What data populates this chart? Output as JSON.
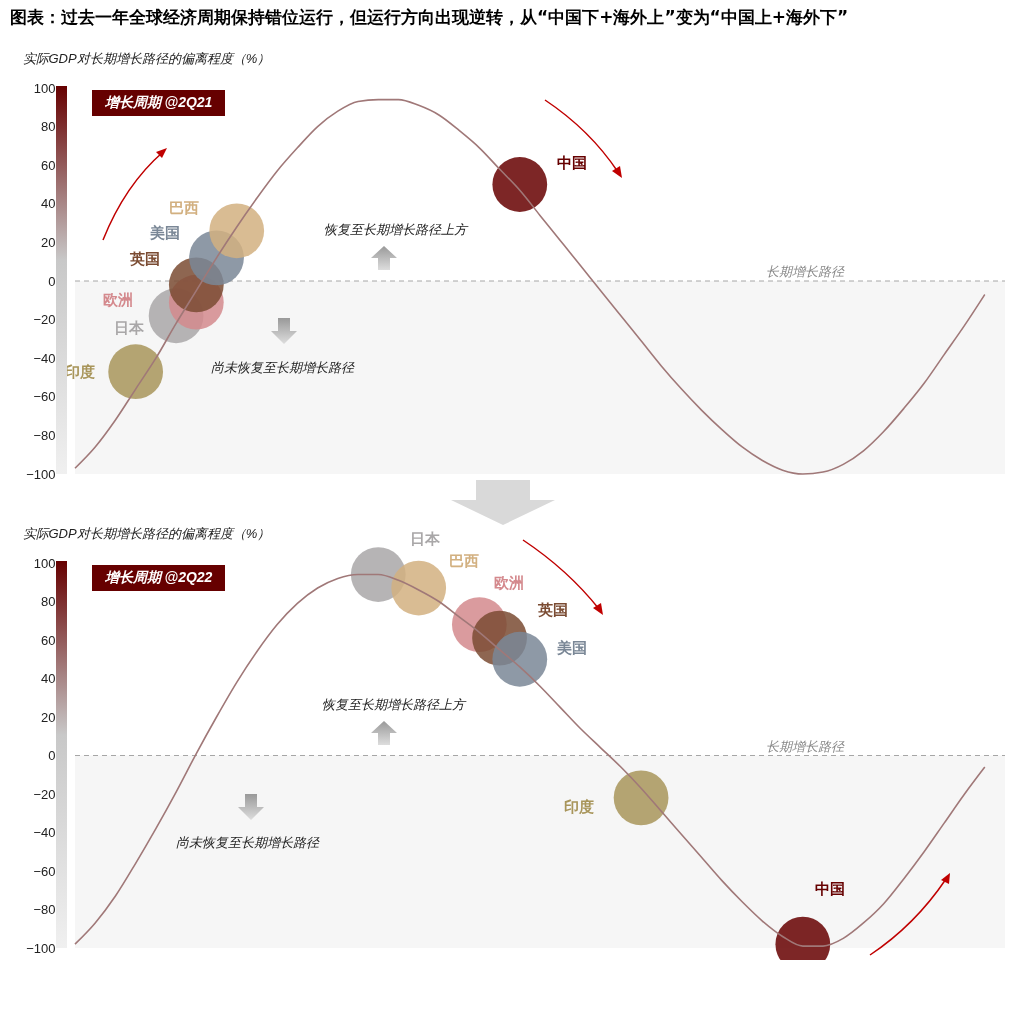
{
  "chart_data": [
    {
      "type": "scatter",
      "title": "图表：过去一年全球经济周期保持错位运行，但运行方向出现逆转，从“中国下+海外上”变为“中国上+海外下”",
      "subtitle": "增长周期 @2Q21",
      "ylabel": "实际GDP对长期增长路径的偏离程度（%）",
      "marker": "circle",
      "categories": [
        null,
        null,
        null,
        null,
        null,
        null,
        null,
        null,
        null,
        null,
        null,
        null,
        null,
        null,
        null,
        null,
        null,
        null,
        null,
        null,
        null,
        null,
        null,
        null,
        null,
        null,
        null,
        null,
        null,
        null,
        null,
        null,
        null,
        null,
        null,
        null,
        null,
        null,
        null,
        null,
        null,
        null,
        null,
        null,
        null,
        null,
        null
      ],
      "ylim": [
        -100,
        100
      ],
      "yticks": [
        -100,
        -80,
        -60,
        -40,
        -20,
        0,
        20,
        40,
        60,
        80,
        100
      ],
      "ref_lines": [
        {
          "axis": "y",
          "value": 0,
          "label": "长期增长路径",
          "color": "#a6a6a6",
          "line_style": "dashed"
        }
      ],
      "bands": [
        {
          "axis": "y",
          "from": -100,
          "to": 0,
          "color": "#f6f6f6"
        }
      ],
      "annotations": [
        "恢复至长期增长路径上方",
        "尚未恢复至长期增长路径"
      ],
      "series": [
        {
          "type": "line",
          "marker": "none",
          "color": "#a07878",
          "values": [
            -97,
            -86,
            -72,
            -56,
            -40,
            -22,
            -5,
            12,
            28,
            43,
            57,
            69,
            80,
            88,
            93,
            94,
            94,
            91,
            86,
            78,
            69,
            58,
            47,
            34,
            21,
            8,
            -5,
            -18,
            -31,
            -44,
            -56,
            -67,
            -77,
            -86,
            -93,
            -98,
            -100,
            -99,
            -95,
            -88,
            -78,
            -66,
            -53,
            -38,
            -23,
            -7,
            null
          ]
        },
        {
          "name": "印度",
          "color": "#a8955a",
          "values": [
            null,
            null,
            null,
            -47,
            null,
            null,
            null,
            null,
            null,
            null,
            null,
            null,
            null,
            null,
            null,
            null,
            null,
            null,
            null,
            null,
            null,
            null,
            null,
            null,
            null,
            null,
            null,
            null,
            null,
            null,
            null,
            null,
            null,
            null,
            null,
            null,
            null,
            null,
            null,
            null,
            null,
            null,
            null,
            null,
            null,
            null,
            null
          ]
        },
        {
          "name": "日本",
          "color": "#a9a7a8",
          "values": [
            null,
            null,
            null,
            null,
            null,
            -18,
            null,
            null,
            null,
            null,
            null,
            null,
            null,
            null,
            null,
            null,
            null,
            null,
            null,
            null,
            null,
            null,
            null,
            null,
            null,
            null,
            null,
            null,
            null,
            null,
            null,
            null,
            null,
            null,
            null,
            null,
            null,
            null,
            null,
            null,
            null,
            null,
            null,
            null,
            null,
            null,
            null
          ]
        },
        {
          "name": "欧洲",
          "color": "#d4898d",
          "values": [
            null,
            null,
            null,
            null,
            null,
            null,
            -11,
            null,
            null,
            null,
            null,
            null,
            null,
            null,
            null,
            null,
            null,
            null,
            null,
            null,
            null,
            null,
            null,
            null,
            null,
            null,
            null,
            null,
            null,
            null,
            null,
            null,
            null,
            null,
            null,
            null,
            null,
            null,
            null,
            null,
            null,
            null,
            null,
            null,
            null,
            null,
            null
          ]
        },
        {
          "name": "英国",
          "color": "#7a4b32",
          "values": [
            null,
            null,
            null,
            null,
            null,
            null,
            -2,
            null,
            null,
            null,
            null,
            null,
            null,
            null,
            null,
            null,
            null,
            null,
            null,
            null,
            null,
            null,
            null,
            null,
            null,
            null,
            null,
            null,
            null,
            null,
            null,
            null,
            null,
            null,
            null,
            null,
            null,
            null,
            null,
            null,
            null,
            null,
            null,
            null,
            null,
            null,
            null
          ]
        },
        {
          "name": "美国",
          "color": "#7a8796",
          "values": [
            null,
            null,
            null,
            null,
            null,
            null,
            null,
            12,
            null,
            null,
            null,
            null,
            null,
            null,
            null,
            null,
            null,
            null,
            null,
            null,
            null,
            null,
            null,
            null,
            null,
            null,
            null,
            null,
            null,
            null,
            null,
            null,
            null,
            null,
            null,
            null,
            null,
            null,
            null,
            null,
            null,
            null,
            null,
            null,
            null,
            null,
            null
          ]
        },
        {
          "name": "巴西",
          "color": "#d2b080",
          "values": [
            null,
            null,
            null,
            null,
            null,
            null,
            null,
            null,
            26,
            null,
            null,
            null,
            null,
            null,
            null,
            null,
            null,
            null,
            null,
            null,
            null,
            null,
            null,
            null,
            null,
            null,
            null,
            null,
            null,
            null,
            null,
            null,
            null,
            null,
            null,
            null,
            null,
            null,
            null,
            null,
            null,
            null,
            null,
            null,
            null,
            null,
            null
          ]
        },
        {
          "name": "中国",
          "color": "#660000",
          "values": [
            null,
            null,
            null,
            null,
            null,
            null,
            null,
            null,
            null,
            null,
            null,
            null,
            null,
            null,
            null,
            null,
            null,
            null,
            null,
            null,
            null,
            null,
            50,
            null,
            null,
            null,
            null,
            null,
            null,
            null,
            null,
            null,
            null,
            null,
            null,
            null,
            null,
            null,
            null,
            null,
            null,
            null,
            null,
            null,
            null,
            null,
            null
          ]
        }
      ]
    },
    {
      "type": "scatter",
      "subtitle": "增长周期 @2Q22",
      "ylabel": "实际GDP对长期增长路径的偏离程度（%）",
      "marker": "circle",
      "categories": [
        null,
        null,
        null,
        null,
        null,
        null,
        null,
        null,
        null,
        null,
        null,
        null,
        null,
        null,
        null,
        null,
        null,
        null,
        null,
        null,
        null,
        null,
        null,
        null,
        null,
        null,
        null,
        null,
        null,
        null,
        null,
        null,
        null,
        null,
        null,
        null,
        null,
        null,
        null,
        null,
        null,
        null,
        null,
        null,
        null,
        null,
        null
      ],
      "ylim": [
        -100,
        100
      ],
      "yticks": [
        -100,
        -80,
        -60,
        -40,
        -20,
        0,
        20,
        40,
        60,
        80,
        100
      ],
      "ref_lines": [
        {
          "axis": "y",
          "value": 0,
          "label": "长期增长路径",
          "color": "#a6a6a6",
          "line_style": "dashed"
        }
      ],
      "bands": [
        {
          "axis": "y",
          "from": -100,
          "to": 0,
          "color": "#f6f6f6"
        }
      ],
      "annotations": [
        "恢复至长期增长路径上方",
        "尚未恢复至长期增长路径"
      ],
      "series": [
        {
          "type": "line",
          "marker": "none",
          "color": "#a07878",
          "values": [
            -98,
            -87,
            -73,
            -56,
            -38,
            -19,
            1,
            20,
            38,
            54,
            68,
            79,
            87,
            92,
            94,
            94,
            91,
            86,
            80,
            72,
            64,
            55,
            46,
            36,
            25,
            14,
            4,
            -6,
            -17,
            -29,
            -41,
            -53,
            -65,
            -76,
            -86,
            -94,
            -99,
            -99,
            -95,
            -87,
            -77,
            -64,
            -50,
            -35,
            -20,
            -6,
            null
          ]
        },
        {
          "name": "印度",
          "color": "#a8955a",
          "values": [
            null,
            null,
            null,
            null,
            null,
            null,
            null,
            null,
            null,
            null,
            null,
            null,
            null,
            null,
            null,
            null,
            null,
            null,
            null,
            null,
            null,
            null,
            null,
            null,
            null,
            null,
            null,
            null,
            -22,
            null,
            null,
            null,
            null,
            null,
            null,
            null,
            null,
            null,
            null,
            null,
            null,
            null,
            null,
            null,
            null,
            null,
            null
          ]
        },
        {
          "name": "日本",
          "color": "#a9a7a8",
          "values": [
            null,
            null,
            null,
            null,
            null,
            null,
            null,
            null,
            null,
            null,
            null,
            null,
            null,
            null,
            null,
            94,
            null,
            null,
            null,
            null,
            null,
            null,
            null,
            null,
            null,
            null,
            null,
            null,
            null,
            null,
            null,
            null,
            null,
            null,
            null,
            null,
            null,
            null,
            null,
            null,
            null,
            null,
            null,
            null,
            null,
            null,
            null
          ]
        },
        {
          "name": "欧洲",
          "color": "#d4898d",
          "values": [
            null,
            null,
            null,
            null,
            null,
            null,
            null,
            null,
            null,
            null,
            null,
            null,
            null,
            null,
            null,
            null,
            null,
            null,
            null,
            null,
            68,
            null,
            null,
            null,
            null,
            null,
            null,
            null,
            null,
            null,
            null,
            null,
            null,
            null,
            null,
            null,
            null,
            null,
            null,
            null,
            null,
            null,
            null,
            null,
            null,
            null,
            null
          ]
        },
        {
          "name": "英国",
          "color": "#7a4b32",
          "values": [
            null,
            null,
            null,
            null,
            null,
            null,
            null,
            null,
            null,
            null,
            null,
            null,
            null,
            null,
            null,
            null,
            null,
            null,
            null,
            null,
            null,
            61,
            null,
            null,
            null,
            null,
            null,
            null,
            null,
            null,
            null,
            null,
            null,
            null,
            null,
            null,
            null,
            null,
            null,
            null,
            null,
            null,
            null,
            null,
            null,
            null,
            null
          ]
        },
        {
          "name": "美国",
          "color": "#7a8796",
          "values": [
            null,
            null,
            null,
            null,
            null,
            null,
            null,
            null,
            null,
            null,
            null,
            null,
            null,
            null,
            null,
            null,
            null,
            null,
            null,
            null,
            null,
            null,
            50,
            null,
            null,
            null,
            null,
            null,
            null,
            null,
            null,
            null,
            null,
            null,
            null,
            null,
            null,
            null,
            null,
            null,
            null,
            null,
            null,
            null,
            null,
            null,
            null
          ]
        },
        {
          "name": "巴西",
          "color": "#d2b080",
          "values": [
            null,
            null,
            null,
            null,
            null,
            null,
            null,
            null,
            null,
            null,
            null,
            null,
            null,
            null,
            null,
            null,
            null,
            87,
            null,
            null,
            null,
            null,
            null,
            null,
            null,
            null,
            null,
            null,
            null,
            null,
            null,
            null,
            null,
            null,
            null,
            null,
            null,
            null,
            null,
            null,
            null,
            null,
            null,
            null,
            null,
            null,
            null
          ]
        },
        {
          "name": "中国",
          "color": "#660000",
          "values": [
            null,
            null,
            null,
            null,
            null,
            null,
            null,
            null,
            null,
            null,
            null,
            null,
            null,
            null,
            null,
            null,
            null,
            null,
            null,
            null,
            null,
            null,
            null,
            null,
            null,
            null,
            null,
            null,
            null,
            null,
            null,
            null,
            null,
            null,
            null,
            null,
            -98,
            null,
            null,
            null,
            null,
            null,
            null,
            null,
            null,
            null,
            null
          ]
        }
      ]
    }
  ]
}
